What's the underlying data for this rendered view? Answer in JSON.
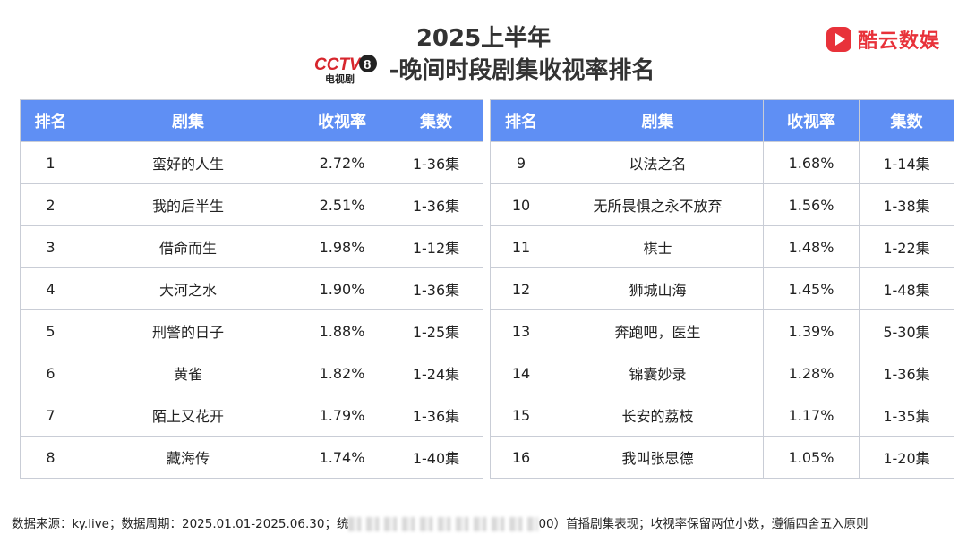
{
  "header": {
    "title_line1": "2025上半年",
    "logo_text": "CCTV8",
    "logo_sub": "电视剧",
    "title_line2": "-晚间时段剧集收视率排名"
  },
  "brand": {
    "name": "酷云数娱",
    "color": "#e8323a"
  },
  "table": {
    "headers": [
      "排名",
      "剧集",
      "收视率",
      "集数"
    ],
    "header_color": "#5f8ff4",
    "left_rows": [
      {
        "rank": "1",
        "name": "蛮好的人生",
        "rating": "2.72%",
        "episodes": "1-36集"
      },
      {
        "rank": "2",
        "name": "我的后半生",
        "rating": "2.51%",
        "episodes": "1-36集"
      },
      {
        "rank": "3",
        "name": "借命而生",
        "rating": "1.98%",
        "episodes": "1-12集"
      },
      {
        "rank": "4",
        "name": "大河之水",
        "rating": "1.90%",
        "episodes": "1-36集"
      },
      {
        "rank": "5",
        "name": "刑警的日子",
        "rating": "1.88%",
        "episodes": "1-25集"
      },
      {
        "rank": "6",
        "name": "黄雀",
        "rating": "1.82%",
        "episodes": "1-24集"
      },
      {
        "rank": "7",
        "name": "陌上又花开",
        "rating": "1.79%",
        "episodes": "1-36集"
      },
      {
        "rank": "8",
        "name": "藏海传",
        "rating": "1.74%",
        "episodes": "1-40集"
      }
    ],
    "right_rows": [
      {
        "rank": "9",
        "name": "以法之名",
        "rating": "1.68%",
        "episodes": "1-14集"
      },
      {
        "rank": "10",
        "name": "无所畏惧之永不放弃",
        "rating": "1.56%",
        "episodes": "1-38集"
      },
      {
        "rank": "11",
        "name": "棋士",
        "rating": "1.48%",
        "episodes": "1-22集"
      },
      {
        "rank": "12",
        "name": "狮城山海",
        "rating": "1.45%",
        "episodes": "1-48集"
      },
      {
        "rank": "13",
        "name": "奔跑吧，医生",
        "rating": "1.39%",
        "episodes": "5-30集"
      },
      {
        "rank": "14",
        "name": "锦囊妙录",
        "rating": "1.28%",
        "episodes": "1-36集"
      },
      {
        "rank": "15",
        "name": "长安的荔枝",
        "rating": "1.17%",
        "episodes": "1-35集"
      },
      {
        "rank": "16",
        "name": "我叫张思德",
        "rating": "1.05%",
        "episodes": "1-20集"
      }
    ]
  },
  "footer": {
    "text_before": "数据来源：ky.live；数据周期：2025.01.01-2025.06.30；统",
    "text_after": "00）首播剧集表现；收视率保留两位小数，遵循四舍五入原则"
  }
}
